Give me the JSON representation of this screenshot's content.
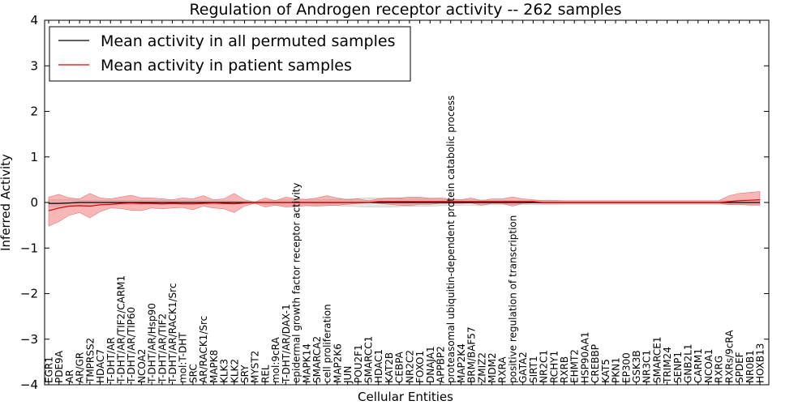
{
  "chart_data": {
    "type": "line",
    "title": "Regulation of Androgen receptor activity -- 262 samples",
    "xlabel": "Cellular Entities",
    "ylabel": "Inferred Activity",
    "ylim": [
      -4,
      4
    ],
    "yticks": [
      "−4",
      "−3",
      "−2",
      "−1",
      "0",
      "1",
      "2",
      "3",
      "4"
    ],
    "grid": false,
    "legend": {
      "position": "top-left",
      "entries": [
        {
          "label": "Mean activity in all permuted samples",
          "color": "#000000"
        },
        {
          "label": "Mean activity in patient samples",
          "color": "#e00000"
        }
      ]
    },
    "categories": [
      "EGR1",
      "PDE9A",
      "AR",
      "AR/GR",
      "TMPRSS2",
      "HDAC7",
      "T-DHT/AR",
      "T-DHT/AR/TIF2/CARM1",
      "T-DHT/AR/TIP60",
      "NCOA2",
      "T-DHT/AR/Hsp90",
      "T-DHT/AR/TIF2",
      "T-DHT/AR/RACK1/Src",
      "mol:T-DHT",
      "SRC",
      "AR/RACK1/Src",
      "MAPK8",
      "KLK3",
      "KLK2",
      "SRY",
      "MYST2",
      "REL",
      "mol:9cRA",
      "T-DHT/AR/DAX-1",
      "epidermal growth factor receptor activity",
      "MAPK14",
      "SMARCA2",
      "cell proliferation",
      "MAP2K6",
      "JUN",
      "POU2F1",
      "SMARCC1",
      "HDAC1",
      "KAT2B",
      "CEBPA",
      "NR2C2",
      "FOXO1",
      "DNAJA1",
      "APPBP2",
      "proteasomal ubiquitin-dependent protein catabolic process",
      "MAP2K4",
      "BRM/BAF57",
      "ZMIZ2",
      "MDM2",
      "RXRA",
      "positive regulation of transcription",
      "GATA2",
      "SIRT1",
      "NR2C1",
      "RCHY1",
      "RXRB",
      "EHMT2",
      "HSP90AA1",
      "CREBBP",
      "KAT5",
      "PKN1",
      "EP300",
      "GSK3B",
      "NR3C1",
      "SMARCE1",
      "TRIM24",
      "SENP1",
      "GNB2L1",
      "CARM1",
      "NCOA1",
      "RXRG",
      "RXRs/9cRA",
      "SPDEF",
      "NR0B1",
      "HOXB13"
    ],
    "series": [
      {
        "name": "Mean activity in all permuted samples",
        "values": [
          -0.02,
          -0.02,
          -0.01,
          0,
          0,
          0,
          0,
          0,
          0,
          0,
          0,
          0,
          0,
          0,
          0,
          0,
          0,
          0,
          0,
          0,
          0,
          0,
          0,
          0,
          0,
          0,
          0,
          0,
          0,
          0,
          0,
          0,
          0,
          0,
          0,
          0,
          0,
          0,
          0,
          0,
          0,
          0,
          0,
          0,
          0,
          0,
          0,
          0,
          0,
          0,
          0,
          0,
          0,
          0,
          0,
          0,
          0,
          0,
          0,
          0,
          0,
          0,
          0,
          0,
          0,
          0,
          0,
          0,
          0,
          0
        ],
        "lower": [
          -0.1,
          -0.09,
          -0.08,
          -0.07,
          -0.07,
          -0.06,
          -0.06,
          -0.05,
          -0.05,
          -0.05,
          -0.05,
          -0.05,
          -0.04,
          -0.04,
          -0.04,
          -0.04,
          -0.04,
          -0.04,
          -0.03,
          -0.02,
          -0.02,
          -0.04,
          -0.05,
          -0.06,
          -0.06,
          -0.06,
          -0.06,
          -0.06,
          -0.07,
          -0.08,
          -0.09,
          -0.1,
          -0.1,
          -0.1,
          -0.09,
          -0.08,
          -0.08,
          -0.08,
          -0.07,
          -0.07,
          -0.06,
          -0.06,
          -0.06,
          -0.05,
          -0.05,
          -0.05,
          -0.05,
          -0.05,
          -0.05,
          -0.05,
          -0.04,
          -0.04,
          -0.04,
          -0.04,
          -0.04,
          -0.04,
          -0.04,
          -0.04,
          -0.04,
          -0.04,
          -0.04,
          -0.04,
          -0.04,
          -0.04,
          -0.04,
          -0.04,
          -0.04,
          -0.05,
          -0.05,
          -0.05
        ],
        "upper": [
          0.06,
          0.06,
          0.06,
          0.05,
          0.05,
          0.05,
          0.05,
          0.05,
          0.05,
          0.05,
          0.05,
          0.05,
          0.04,
          0.04,
          0.04,
          0.04,
          0.04,
          0.04,
          0.03,
          0.02,
          0.02,
          0.04,
          0.05,
          0.06,
          0.06,
          0.06,
          0.06,
          0.06,
          0.07,
          0.08,
          0.09,
          0.1,
          0.1,
          0.1,
          0.09,
          0.08,
          0.08,
          0.08,
          0.07,
          0.07,
          0.06,
          0.06,
          0.06,
          0.05,
          0.05,
          0.05,
          0.05,
          0.05,
          0.05,
          0.05,
          0.04,
          0.04,
          0.04,
          0.04,
          0.04,
          0.04,
          0.04,
          0.04,
          0.04,
          0.04,
          0.04,
          0.04,
          0.04,
          0.04,
          0.04,
          0.04,
          0.04,
          0.05,
          0.05,
          0.05
        ]
      },
      {
        "name": "Mean activity in patient samples",
        "values": [
          -0.18,
          -0.12,
          -0.08,
          -0.07,
          -0.08,
          -0.05,
          -0.04,
          -0.02,
          -0.01,
          -0.02,
          -0.02,
          -0.03,
          -0.02,
          -0.03,
          -0.03,
          -0.02,
          -0.01,
          -0.02,
          -0.03,
          -0.01,
          0,
          0,
          0,
          0,
          0,
          0,
          0,
          0,
          0,
          0,
          0,
          0,
          0.02,
          0.02,
          0.02,
          0.02,
          0.02,
          0.02,
          0.02,
          0.02,
          0.02,
          0.02,
          0.02,
          0.02,
          0.02,
          0.02,
          0.02,
          0.02,
          0,
          0,
          0,
          0,
          0,
          0,
          0,
          0,
          0,
          0,
          0,
          0,
          0,
          0,
          0,
          0,
          0,
          0,
          0.02,
          0.04,
          0.05,
          0.06
        ],
        "lower": [
          -0.52,
          -0.42,
          -0.28,
          -0.22,
          -0.34,
          -0.2,
          -0.12,
          -0.13,
          -0.17,
          -0.18,
          -0.12,
          -0.14,
          -0.12,
          -0.11,
          -0.16,
          -0.08,
          -0.12,
          -0.14,
          -0.22,
          -0.08,
          -0.02,
          -0.1,
          -0.06,
          -0.1,
          -0.09,
          -0.07,
          -0.08,
          -0.07,
          -0.06,
          -0.04,
          -0.02,
          0,
          -0.02,
          -0.04,
          -0.06,
          -0.07,
          -0.04,
          -0.04,
          -0.02,
          -0.02,
          -0.02,
          -0.01,
          -0.06,
          -0.02,
          -0.02,
          -0.08,
          -0.02,
          -0.01,
          -0.02,
          -0.02,
          -0.02,
          -0.02,
          -0.02,
          -0.02,
          -0.02,
          -0.02,
          -0.02,
          -0.02,
          -0.02,
          -0.02,
          -0.02,
          -0.02,
          -0.02,
          -0.02,
          -0.02,
          -0.02,
          -0.05,
          -0.04,
          -0.06,
          -0.06
        ],
        "upper": [
          0.12,
          0.18,
          0.1,
          0.08,
          0.2,
          0.1,
          0.08,
          0.12,
          0.16,
          0.1,
          0.1,
          0.08,
          0.06,
          0.1,
          0.08,
          0.15,
          0.06,
          0.08,
          0.2,
          0.06,
          0.01,
          0.1,
          0.04,
          0.12,
          0.08,
          0.07,
          0.1,
          0.15,
          0.1,
          0.06,
          0.08,
          0.04,
          0.08,
          0.1,
          0.1,
          0.12,
          0.12,
          0.09,
          0.1,
          0.08,
          0.06,
          0.1,
          0.04,
          0.08,
          0.08,
          0.12,
          0.08,
          0.06,
          0.04,
          0.04,
          0.04,
          0.04,
          0.04,
          0.04,
          0.04,
          0.04,
          0.04,
          0.04,
          0.04,
          0.04,
          0.04,
          0.04,
          0.04,
          0.04,
          0.04,
          0.04,
          0.15,
          0.2,
          0.22,
          0.24
        ]
      }
    ]
  }
}
